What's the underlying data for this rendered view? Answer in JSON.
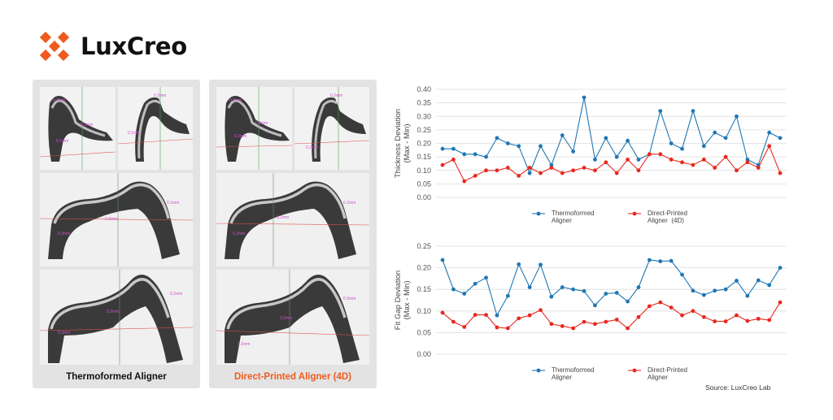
{
  "brand": {
    "name": "LuxCreo",
    "colors": {
      "accent": "#f05a1e",
      "text": "#111111"
    },
    "logo_icon": "x-mark-icon"
  },
  "panels": [
    {
      "caption": "Thermoformed Aligner",
      "caption_color": "#111111",
      "scans": [
        {
          "labels": [
            "0.3mm",
            "0.2mm",
            "0.1mm"
          ]
        },
        {
          "labels": [
            "0.2mm",
            "0.1mm"
          ]
        },
        {
          "labels": [
            "0.3mm",
            "0.2mm",
            "0.1mm"
          ]
        },
        {
          "labels": [
            "0.3mm",
            "0.2mm",
            "0.2mm"
          ]
        }
      ]
    },
    {
      "caption": "Direct-Printed Aligner (4D)",
      "caption_color": "#f05a1e",
      "scans": [
        {
          "labels": [
            "0.2mm",
            "0.2mm",
            "0.2mm"
          ]
        },
        {
          "labels": [
            "0.2mm",
            "0.2mm"
          ]
        },
        {
          "labels": [
            "0.2mm",
            "0.2mm",
            "0.2mm"
          ]
        },
        {
          "labels": [
            "0.3mm",
            "0.2mm",
            "0.3mm"
          ]
        }
      ]
    }
  ],
  "chart_data": [
    {
      "type": "line",
      "ylabel": [
        "Thickness Deviation",
        "(Max - Min)"
      ],
      "ylim": [
        0,
        0.4
      ],
      "yticks": [
        "0.00",
        "0.05",
        "0.10",
        "0.15",
        "0.20",
        "0.25",
        "0.30",
        "0.35",
        "0.40"
      ],
      "grid": true,
      "legend_position": "bottom",
      "series": [
        {
          "name": [
            "Thermoformed",
            "Aligner"
          ],
          "color": "#1f77b4",
          "values": [
            0.18,
            0.18,
            0.16,
            0.16,
            0.15,
            0.22,
            0.2,
            0.19,
            0.09,
            0.19,
            0.12,
            0.23,
            0.17,
            0.37,
            0.14,
            0.22,
            0.15,
            0.21,
            0.14,
            0.16,
            0.32,
            0.2,
            0.18,
            0.32,
            0.19,
            0.24,
            0.22,
            0.3,
            0.14,
            0.12,
            0.24,
            0.22
          ]
        },
        {
          "name": [
            "Direct-Printed",
            "Aligner  (4D)"
          ],
          "color": "#e8281e",
          "values": [
            0.12,
            0.14,
            0.06,
            0.08,
            0.1,
            0.1,
            0.11,
            0.08,
            0.11,
            0.09,
            0.11,
            0.09,
            0.1,
            0.11,
            0.1,
            0.13,
            0.09,
            0.14,
            0.1,
            0.16,
            0.16,
            0.14,
            0.13,
            0.12,
            0.14,
            0.11,
            0.15,
            0.1,
            0.13,
            0.11,
            0.19,
            0.09
          ]
        }
      ]
    },
    {
      "type": "line",
      "ylabel": [
        "Fit Gap Deviation",
        "(Max - Min)"
      ],
      "ylim": [
        0,
        0.25
      ],
      "yticks": [
        "0.00",
        "0.05",
        "0.10",
        "0.15",
        "0.20",
        "0.25"
      ],
      "grid": true,
      "legend_position": "bottom",
      "series": [
        {
          "name": [
            "Thermoformed",
            "Aligner"
          ],
          "color": "#1f77b4",
          "values": [
            0.218,
            0.15,
            0.14,
            0.163,
            0.177,
            0.09,
            0.135,
            0.208,
            0.155,
            0.207,
            0.133,
            0.155,
            0.15,
            0.146,
            0.113,
            0.14,
            0.142,
            0.122,
            0.155,
            0.218,
            0.215,
            0.216,
            0.184,
            0.147,
            0.137,
            0.147,
            0.15,
            0.17,
            0.135,
            0.171,
            0.16,
            0.2
          ]
        },
        {
          "name": [
            "Direct-Printed",
            "Aligner"
          ],
          "color": "#e8281e",
          "values": [
            0.096,
            0.075,
            0.063,
            0.091,
            0.091,
            0.062,
            0.06,
            0.083,
            0.09,
            0.102,
            0.07,
            0.065,
            0.06,
            0.075,
            0.07,
            0.075,
            0.08,
            0.06,
            0.086,
            0.111,
            0.12,
            0.108,
            0.09,
            0.1,
            0.086,
            0.076,
            0.076,
            0.09,
            0.077,
            0.082,
            0.079,
            0.12
          ]
        }
      ]
    }
  ],
  "source": "Source: LuxCreo Lab"
}
